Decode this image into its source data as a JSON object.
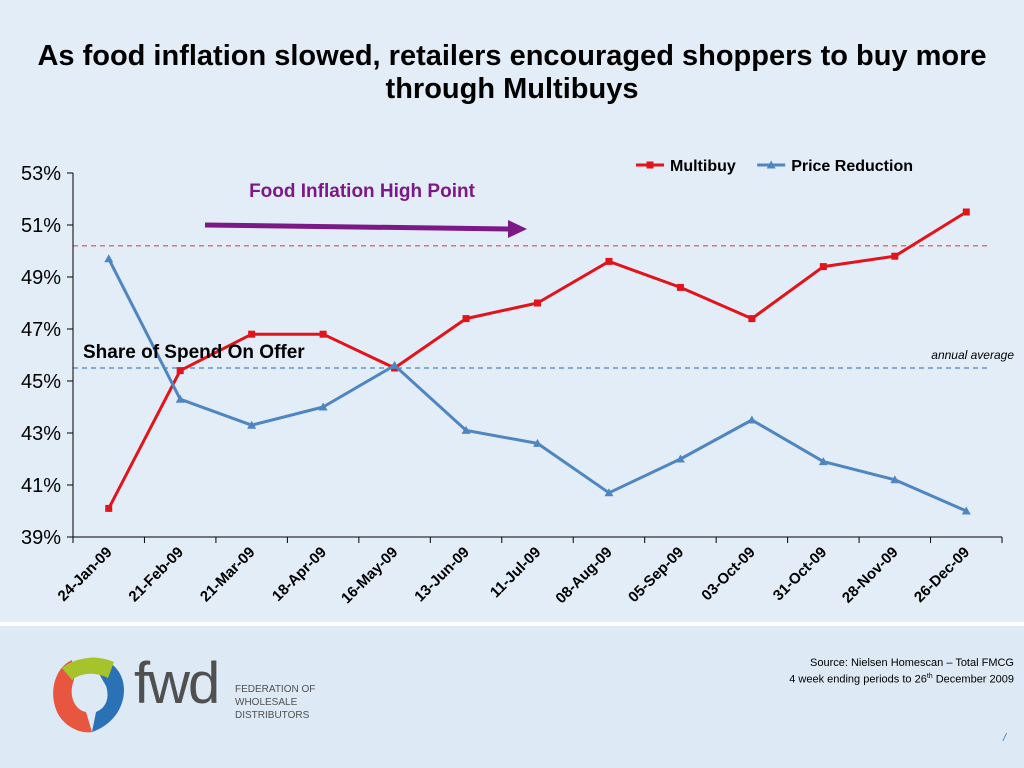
{
  "title": "As food inflation slowed, retailers encouraged shoppers to buy more through Multibuys",
  "chart_data": {
    "type": "line",
    "categories": [
      "24-Jan-09",
      "21-Feb-09",
      "21-Mar-09",
      "18-Apr-09",
      "16-May-09",
      "13-Jun-09",
      "11-Jul-09",
      "08-Aug-09",
      "05-Sep-09",
      "03-Oct-09",
      "31-Oct-09",
      "28-Nov-09",
      "26-Dec-09"
    ],
    "series": [
      {
        "name": "Multibuy",
        "color": "#e2131b",
        "marker": "square",
        "values": [
          40.1,
          45.4,
          46.8,
          46.8,
          45.5,
          47.4,
          48.0,
          49.6,
          48.6,
          47.4,
          49.4,
          49.8,
          51.5
        ]
      },
      {
        "name": "Price Reduction",
        "color": "#4f86c0",
        "marker": "triangle",
        "values": [
          49.7,
          44.3,
          43.3,
          44.0,
          45.6,
          43.1,
          42.6,
          40.7,
          42.0,
          43.5,
          41.9,
          41.2,
          40.0
        ]
      }
    ],
    "yticks": [
      "39%",
      "41%",
      "43%",
      "45%",
      "47%",
      "49%",
      "51%",
      "53%"
    ],
    "ylim": [
      39,
      53
    ],
    "legend_position": "top-right",
    "reference_lines": [
      {
        "series": "Multibuy",
        "value": 50.2,
        "color": "#d9504f"
      },
      {
        "series": "Price Reduction",
        "value": 45.5,
        "color": "#4f86c0"
      }
    ],
    "annotations": {
      "inflation_label": "Food Inflation High Point",
      "share_label": "Share of Spend On Offer",
      "average_label": "annual average"
    }
  },
  "source": {
    "line1": "Source: Nielsen Homescan – Total FMCG",
    "line2_pre": "4 week ending periods to 26",
    "line2_sup": "th",
    "line2_post": " December 2009"
  },
  "logo": {
    "mark": "fwd",
    "sub1": "FEDERATION OF",
    "sub2": "WHOLESALE",
    "sub3": "DISTRIBUTORS"
  },
  "page_number": "/"
}
